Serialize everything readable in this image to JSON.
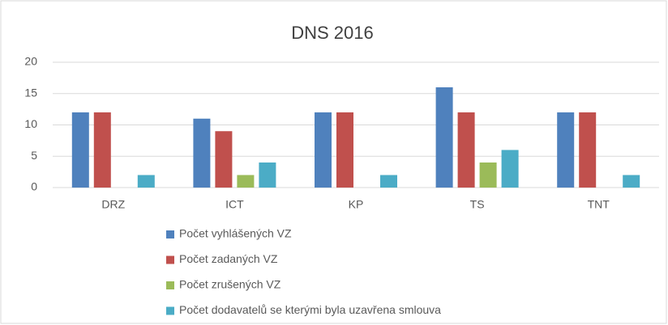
{
  "chart_data": {
    "type": "bar",
    "title": "DNS 2016",
    "categories": [
      "DRZ",
      "ICT",
      "KP",
      "TS",
      "TNT"
    ],
    "series": [
      {
        "name": "Počet vyhlášených VZ",
        "color": "#4f81bd",
        "values": [
          12,
          11,
          12,
          16,
          12
        ]
      },
      {
        "name": "Počet zadaných VZ",
        "color": "#c0504d",
        "values": [
          12,
          9,
          12,
          12,
          12
        ]
      },
      {
        "name": "Počet zrušených VZ",
        "color": "#9bbb59",
        "values": [
          0,
          2,
          0,
          4,
          0
        ]
      },
      {
        "name": "Počet dodavatelů se kterými byla uzavřena smlouva",
        "color": "#4bacc6",
        "values": [
          2,
          4,
          2,
          6,
          2
        ]
      }
    ],
    "ylim": [
      0,
      20
    ],
    "yticks": [
      0,
      5,
      10,
      15,
      20
    ],
    "grid": true,
    "legend": "bottom"
  }
}
